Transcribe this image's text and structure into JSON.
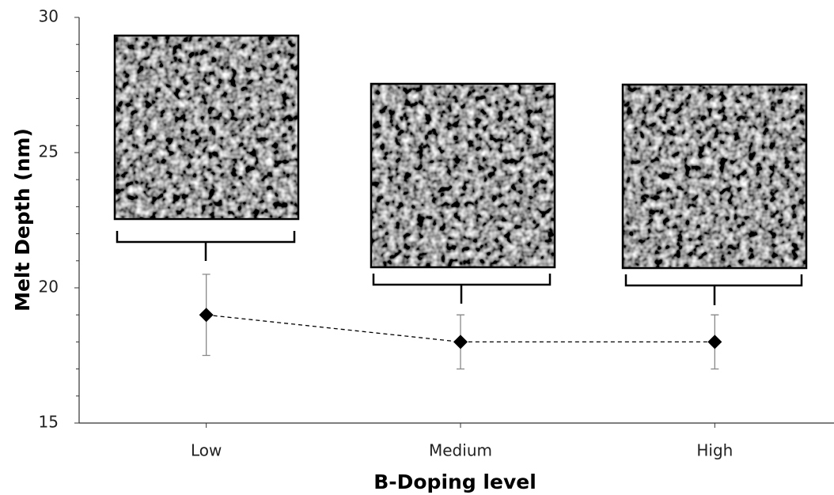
{
  "chart_data": {
    "type": "line",
    "x_label": "B-Doping level",
    "y_label": "Melt Depth (nm)",
    "categories": [
      "Low",
      "Medium",
      "High"
    ],
    "series": [
      {
        "values": [
          19,
          18,
          18
        ],
        "errors": [
          1.5,
          1,
          1
        ],
        "color": "#000000"
      }
    ],
    "ylim": [
      15,
      30
    ],
    "yticks": [
      15,
      20,
      25,
      30
    ],
    "minor_yticks": [
      16,
      17,
      18,
      19,
      21,
      22,
      23,
      24,
      26,
      27,
      28,
      29
    ],
    "line_style": "dashed",
    "marker": "diamond"
  }
}
